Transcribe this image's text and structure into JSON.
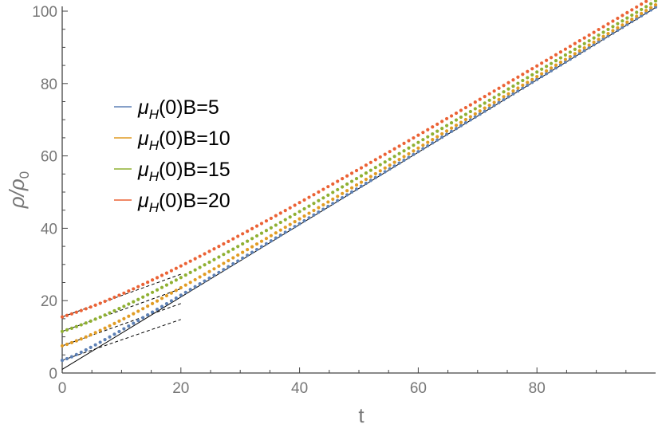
{
  "chart_data": {
    "type": "scatter",
    "xlabel": "t",
    "ylabel": "ρ/ρ0",
    "xlim": [
      0,
      100
    ],
    "ylim": [
      0,
      100
    ],
    "x_ticks": [
      "0",
      "20",
      "40",
      "60",
      "80"
    ],
    "y_ticks": [
      "0",
      "20",
      "40",
      "60",
      "80",
      "100"
    ],
    "legend_position": "left-center",
    "series": [
      {
        "name": "μH(0)B=5",
        "legend_main": "μ",
        "legend_sub": "H",
        "legend_rest": "(0)B=5",
        "color": "#5e81b5",
        "offset": 3.5
      },
      {
        "name": "μH(0)B=10",
        "legend_main": "μ",
        "legend_sub": "H",
        "legend_rest": "(0)B=10",
        "color": "#e19c24",
        "offset": 7.5
      },
      {
        "name": "μH(0)B=15",
        "legend_main": "μ",
        "legend_sub": "H",
        "legend_rest": "(0)B=15",
        "color": "#8fb032",
        "offset": 11.5
      },
      {
        "name": "μH(0)B=20",
        "legend_main": "μ",
        "legend_sub": "H",
        "legend_rest": "(0)B=20",
        "color": "#eb6235",
        "offset": 15.5
      }
    ],
    "asymptote": {
      "x": [
        0,
        100
      ],
      "y": [
        1,
        101
      ]
    },
    "small_t_fits": [
      {
        "x": [
          0,
          20
        ],
        "y": [
          3.5,
          14.8
        ]
      },
      {
        "x": [
          0,
          20
        ],
        "y": [
          7.5,
          19.2
        ]
      },
      {
        "x": [
          0,
          20
        ],
        "y": [
          11.5,
          23.3
        ]
      },
      {
        "x": [
          0,
          20
        ],
        "y": [
          15.5,
          27.3
        ]
      }
    ]
  }
}
